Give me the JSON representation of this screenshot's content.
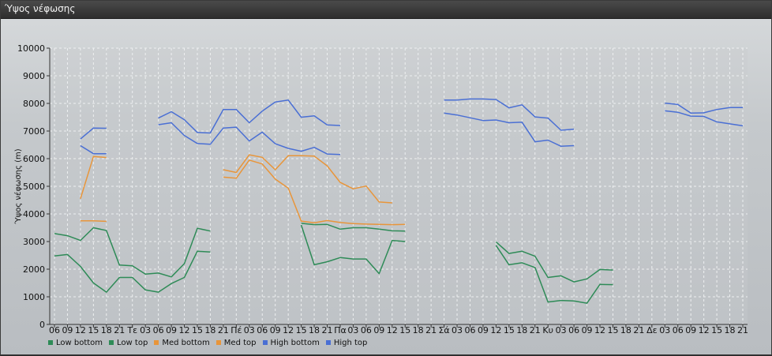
{
  "window": {
    "title": "Ύψος νέφωσης"
  },
  "chart_data": {
    "type": "line",
    "ylabel": "Ύψος νέφωσης (m)",
    "ylim": [
      0,
      10000
    ],
    "yticks": [
      0,
      1000,
      2000,
      3000,
      4000,
      5000,
      6000,
      7000,
      8000,
      9000,
      10000
    ],
    "grid": true,
    "legend_position": "bottom-left",
    "x": [
      "06",
      "09",
      "12",
      "15",
      "18",
      "21",
      "Τε",
      "03",
      "06",
      "09",
      "12",
      "15",
      "18",
      "21",
      "Πέ",
      "03",
      "06",
      "09",
      "12",
      "15",
      "18",
      "21",
      "Πα",
      "03",
      "06",
      "09",
      "12",
      "15",
      "18",
      "21",
      "Σά",
      "03",
      "06",
      "09",
      "12",
      "15",
      "18",
      "21",
      "Κυ",
      "03",
      "06",
      "09",
      "12",
      "15",
      "18",
      "21",
      "Δε",
      "03",
      "06",
      "09",
      "12",
      "15",
      "18",
      "21"
    ],
    "series": [
      {
        "name": "Low bottom",
        "color": "#2e8b57",
        "values": [
          2480,
          2530,
          2100,
          1500,
          1170,
          1700,
          1700,
          1250,
          1170,
          1480,
          1700,
          2650,
          2620,
          null,
          null,
          null,
          null,
          null,
          null,
          3600,
          2160,
          2270,
          2420,
          2370,
          2370,
          1840,
          3040,
          3000,
          null,
          null,
          null,
          null,
          null,
          null,
          2860,
          2160,
          2230,
          2060,
          810,
          870,
          850,
          770,
          1450,
          1440,
          null,
          null,
          null,
          null,
          null,
          null,
          null,
          null,
          null,
          null
        ]
      },
      {
        "name": "Low top",
        "color": "#2e8b57",
        "values": [
          3290,
          3210,
          3040,
          3500,
          3400,
          2150,
          2120,
          1820,
          1860,
          1720,
          2200,
          3480,
          3380,
          null,
          null,
          null,
          null,
          null,
          null,
          3660,
          3610,
          3620,
          3450,
          3500,
          3500,
          3450,
          3390,
          3380,
          null,
          null,
          null,
          null,
          null,
          null,
          2990,
          2570,
          2650,
          2470,
          1700,
          1760,
          1540,
          1650,
          1990,
          1970,
          null,
          null,
          null,
          null,
          null,
          null,
          null,
          null,
          null,
          null
        ]
      },
      {
        "name": "Med bottom",
        "color": "#e8953a",
        "values": [
          null,
          null,
          3750,
          3750,
          3730,
          null,
          null,
          null,
          null,
          null,
          null,
          null,
          null,
          5330,
          5290,
          5950,
          5810,
          5260,
          4930,
          3740,
          3680,
          3760,
          3690,
          3650,
          3630,
          3620,
          3610,
          3620,
          null,
          null,
          null,
          null,
          null,
          null,
          null,
          null,
          null,
          null,
          null,
          null,
          null,
          null,
          null,
          null,
          null,
          null,
          null,
          null,
          null,
          null,
          null,
          null,
          null,
          null
        ]
      },
      {
        "name": "Med top",
        "color": "#e8953a",
        "values": [
          null,
          null,
          4550,
          6080,
          6040,
          null,
          null,
          null,
          null,
          null,
          null,
          null,
          null,
          5600,
          5500,
          6140,
          6050,
          5600,
          6110,
          6110,
          6090,
          5740,
          5140,
          4910,
          5010,
          4430,
          4400,
          null,
          null,
          null,
          null,
          null,
          null,
          null,
          null,
          null,
          null,
          null,
          null,
          null,
          null,
          null,
          null,
          null,
          null,
          null,
          null,
          null,
          null,
          null,
          null,
          null,
          null,
          null
        ]
      },
      {
        "name": "High bottom",
        "color": "#4a6fd4",
        "values": [
          null,
          null,
          6470,
          6180,
          6180,
          null,
          null,
          null,
          7230,
          7300,
          6840,
          6550,
          6520,
          7110,
          7140,
          6640,
          6960,
          6540,
          6370,
          6270,
          6410,
          6170,
          6150,
          null,
          null,
          null,
          null,
          null,
          null,
          null,
          7650,
          7580,
          7480,
          7380,
          7400,
          7300,
          7320,
          6610,
          6670,
          6450,
          6470,
          null,
          null,
          null,
          null,
          null,
          null,
          7730,
          7680,
          7540,
          7530,
          7330,
          7260,
          7190
        ]
      },
      {
        "name": "High top",
        "color": "#4a6fd4",
        "values": [
          null,
          null,
          6710,
          7110,
          7100,
          null,
          null,
          null,
          7470,
          7700,
          7410,
          6950,
          6930,
          7780,
          7780,
          7300,
          7720,
          8050,
          8120,
          7500,
          7550,
          7220,
          7200,
          null,
          null,
          null,
          null,
          null,
          null,
          null,
          8120,
          8120,
          8160,
          8160,
          8140,
          7840,
          7950,
          7510,
          7470,
          7030,
          7070,
          null,
          null,
          null,
          null,
          null,
          null,
          8010,
          7960,
          7650,
          7660,
          7780,
          7850,
          7850
        ]
      }
    ]
  }
}
